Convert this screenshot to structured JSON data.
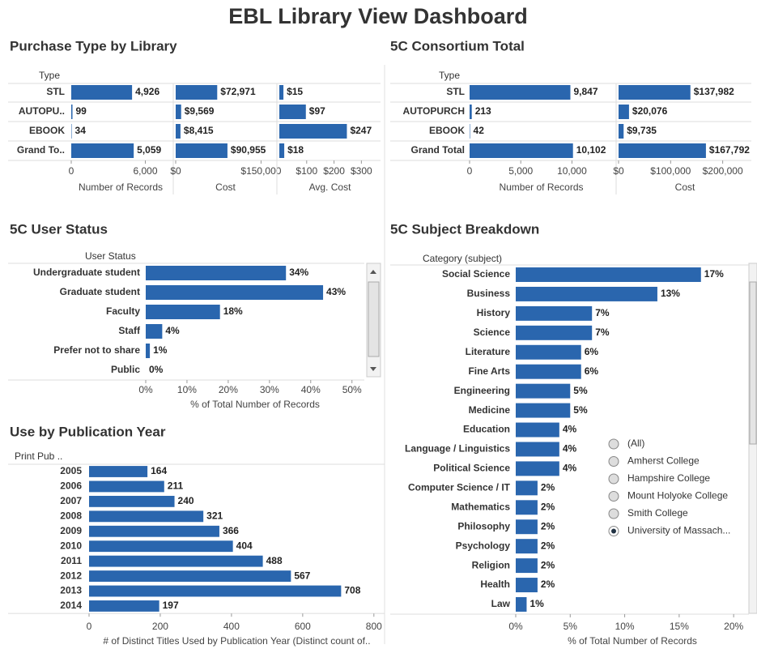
{
  "title": "EBL Library View Dashboard",
  "chart_data": [
    {
      "type": "bar",
      "title": "Purchase Type by Library",
      "row_header": "Type",
      "color": "#2a66ae",
      "categories": [
        "STL",
        "AUTOPU..",
        "EBOOK",
        "Grand To.."
      ],
      "series": [
        {
          "name": "Number of Records",
          "values": [
            4926,
            99,
            34,
            5059
          ],
          "value_labels": [
            "4,926",
            "99",
            "34",
            "5,059"
          ],
          "xlim": [
            0,
            8000
          ],
          "xticks": [
            0,
            {
              "value": 6000,
              "label": "6,000"
            }
          ]
        },
        {
          "name": "Cost",
          "values": [
            72971,
            9569,
            8415,
            90955
          ],
          "value_labels": [
            "$72,971",
            "$9,569",
            "$8,415",
            "$90,955"
          ],
          "xlim": [
            0,
            175000
          ],
          "xticks": [
            {
              "value": 0,
              "label": "$0"
            },
            {
              "value": 150000,
              "label": "$150,000"
            }
          ]
        },
        {
          "name": "Avg. Cost",
          "values": [
            15,
            97,
            247,
            18
          ],
          "value_labels": [
            "$15",
            "$97",
            "$247",
            "$18"
          ],
          "xlim": [
            0,
            370
          ],
          "xticks": [
            {
              "value": 100,
              "label": "$100"
            },
            {
              "value": 200,
              "label": "$200"
            },
            {
              "value": 300,
              "label": "$300"
            }
          ]
        }
      ]
    },
    {
      "type": "bar",
      "title": "5C Consortium Total",
      "row_header": "Type",
      "color": "#2a66ae",
      "categories": [
        "STL",
        "AUTOPURCH",
        "EBOOK",
        "Grand Total"
      ],
      "series": [
        {
          "name": "Number of Records",
          "values": [
            9847,
            213,
            42,
            10102
          ],
          "value_labels": [
            "9,847",
            "213",
            "42",
            "10,102"
          ],
          "xlim": [
            0,
            14000
          ],
          "xticks": [
            0,
            {
              "value": 5000,
              "label": "5,000"
            },
            {
              "value": 10000,
              "label": "10,000"
            }
          ]
        },
        {
          "name": "Cost",
          "values": [
            137982,
            20076,
            9735,
            167792
          ],
          "value_labels": [
            "$137,982",
            "$20,076",
            "$9,735",
            "$167,792"
          ],
          "xlim": [
            0,
            255000
          ],
          "xticks": [
            {
              "value": 0,
              "label": "$0"
            },
            {
              "value": 100000,
              "label": "$100,000"
            },
            {
              "value": 200000,
              "label": "$200,000"
            }
          ]
        }
      ]
    },
    {
      "type": "bar",
      "title": "5C User Status",
      "row_header": "User Status",
      "color": "#2a66ae",
      "categories": [
        "Undergraduate student",
        "Graduate student",
        "Faculty",
        "Staff",
        "Prefer not to share",
        "Public"
      ],
      "values": [
        34,
        43,
        18,
        4,
        1,
        0
      ],
      "value_labels": [
        "34%",
        "43%",
        "18%",
        "4%",
        "1%",
        "0%"
      ],
      "x_label": "% of Total Number of Records",
      "xlim": [
        0,
        53
      ],
      "xticks": [
        {
          "value": 0,
          "label": "0%"
        },
        {
          "value": 10,
          "label": "10%"
        },
        {
          "value": 20,
          "label": "20%"
        },
        {
          "value": 30,
          "label": "30%"
        },
        {
          "value": 40,
          "label": "40%"
        },
        {
          "value": 50,
          "label": "50%"
        }
      ]
    },
    {
      "type": "bar",
      "title": "Use by Publication Year",
      "row_header": "Print Pub ..",
      "color": "#2a66ae",
      "categories": [
        "2005",
        "2006",
        "2007",
        "2008",
        "2009",
        "2010",
        "2011",
        "2012",
        "2013",
        "2014"
      ],
      "values": [
        164,
        211,
        240,
        321,
        366,
        404,
        488,
        567,
        708,
        197
      ],
      "x_label": "# of Distinct Titles Used by Publication Year (Distinct count of..",
      "xlim": [
        0,
        830
      ],
      "xticks": [
        0,
        200,
        400,
        600,
        800
      ]
    },
    {
      "type": "bar",
      "title": "5C Subject Breakdown",
      "row_header": "Category (subject)",
      "color": "#2a66ae",
      "categories": [
        "Social Science",
        "Business",
        "History",
        "Science",
        "Literature",
        "Fine Arts",
        "Engineering",
        "Medicine",
        "Education",
        "Language / Linguistics",
        "Political Science",
        "Computer Science / IT",
        "Mathematics",
        "Philosophy",
        "Psychology",
        "Religion",
        "Health",
        "Law"
      ],
      "values": [
        17,
        13,
        7,
        7,
        6,
        6,
        5,
        5,
        4,
        4,
        4,
        2,
        2,
        2,
        2,
        2,
        2,
        1
      ],
      "value_labels": [
        "17%",
        "13%",
        "7%",
        "7%",
        "6%",
        "6%",
        "5%",
        "5%",
        "4%",
        "4%",
        "4%",
        "2%",
        "2%",
        "2%",
        "2%",
        "2%",
        "2%",
        "1%"
      ],
      "x_label": "% of Total Number of Records",
      "xlim": [
        0,
        21.4
      ],
      "xticks": [
        {
          "value": 0,
          "label": "0%"
        },
        {
          "value": 5,
          "label": "5%"
        },
        {
          "value": 10,
          "label": "10%"
        },
        {
          "value": 15,
          "label": "15%"
        },
        {
          "value": 20,
          "label": "20%"
        }
      ],
      "filter": {
        "options": [
          "(All)",
          "Amherst College",
          "Hampshire College",
          "Mount Holyoke College",
          "Smith College",
          "University of Massach..."
        ],
        "selected": 5
      }
    }
  ]
}
